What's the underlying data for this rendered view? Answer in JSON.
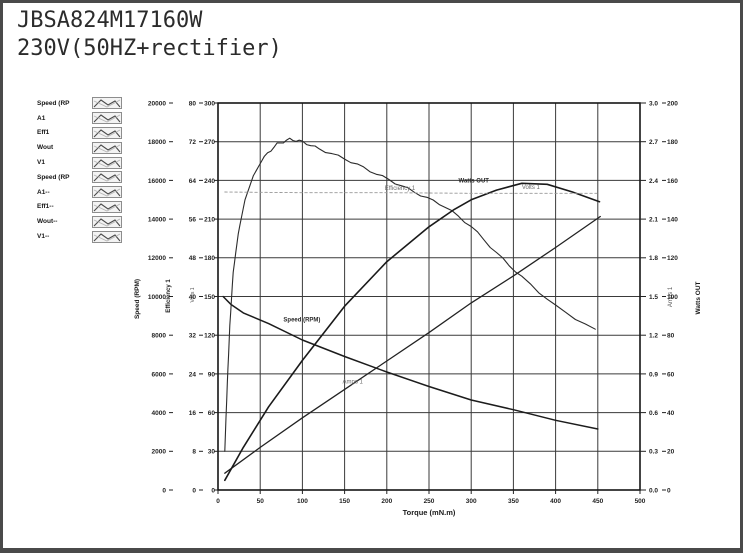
{
  "frame": {
    "title_line1": "JBSA824M17160W",
    "title_line2": "230V(50HZ+rectifier)"
  },
  "legend": {
    "items": [
      {
        "label": "Speed (RP"
      },
      {
        "label": "A1"
      },
      {
        "label": "Eff1"
      },
      {
        "label": "Wout"
      },
      {
        "label": "V1"
      },
      {
        "label": "Speed (RP"
      },
      {
        "label": "A1--"
      },
      {
        "label": "Eff1--"
      },
      {
        "label": "Wout--"
      },
      {
        "label": "V1--"
      }
    ]
  },
  "chart_data": {
    "type": "line",
    "title": "",
    "xlabel": "Torque (mN.m)",
    "xlim": [
      0,
      500
    ],
    "x_ticks": [
      "0",
      "50",
      "100",
      "150",
      "200",
      "250",
      "300",
      "350",
      "400",
      "450",
      "500"
    ],
    "grid": true,
    "legend_position": "left",
    "axes": [
      {
        "id": "speed",
        "title": "Speed (RPM)",
        "side": "left",
        "lim": [
          0,
          20000
        ],
        "ticks": [
          "20000",
          "18000",
          "16000",
          "14000",
          "12000",
          "10000",
          "8000",
          "6000",
          "4000",
          "2000",
          "0"
        ],
        "bold": true
      },
      {
        "id": "efficiency",
        "title": "Efficiency 1",
        "side": "left",
        "lim": [
          0,
          80
        ],
        "ticks": [
          "80",
          "72",
          "64",
          "56",
          "48",
          "40",
          "32",
          "24",
          "16",
          "8",
          "0"
        ],
        "bold": true
      },
      {
        "id": "volts",
        "title": "Volts 1",
        "side": "left",
        "lim": [
          0,
          300
        ],
        "ticks": [
          "300",
          "270",
          "240",
          "210",
          "180",
          "150",
          "120",
          "90",
          "60",
          "30",
          "0"
        ],
        "bold": false
      },
      {
        "id": "amps",
        "title": "Amps 1",
        "side": "right",
        "lim": [
          0,
          3
        ],
        "ticks": [
          "3.0",
          "2.7",
          "2.4",
          "2.1",
          "1.8",
          "1.5",
          "1.2",
          "0.9",
          "0.6",
          "0.3",
          "0.0"
        ],
        "bold": false
      },
      {
        "id": "watts",
        "title": "Watts OUT",
        "side": "right",
        "lim": [
          0,
          200
        ],
        "ticks": [
          "200",
          "180",
          "160",
          "140",
          "120",
          "100",
          "80",
          "60",
          "40",
          "20",
          "0"
        ],
        "bold": true
      }
    ],
    "series": [
      {
        "name": "Speed (RPM)",
        "axis": "speed",
        "noisy": false,
        "dashed": false,
        "points": [
          [
            6,
            10000
          ],
          [
            15,
            9600
          ],
          [
            30,
            9150
          ],
          [
            60,
            8600
          ],
          [
            100,
            7750
          ],
          [
            150,
            6900
          ],
          [
            200,
            6100
          ],
          [
            250,
            5350
          ],
          [
            300,
            4650
          ],
          [
            350,
            4150
          ],
          [
            400,
            3600
          ],
          [
            450,
            3150
          ]
        ]
      },
      {
        "name": "Efficiency 1",
        "axis": "efficiency",
        "noisy": true,
        "dashed": false,
        "points": [
          [
            8,
            8
          ],
          [
            11,
            22
          ],
          [
            14,
            34
          ],
          [
            18,
            45
          ],
          [
            24,
            53
          ],
          [
            32,
            60
          ],
          [
            42,
            65
          ],
          [
            55,
            69
          ],
          [
            70,
            71.5
          ],
          [
            85,
            72.5
          ],
          [
            100,
            72
          ],
          [
            120,
            70.5
          ],
          [
            150,
            68.5
          ],
          [
            180,
            66
          ],
          [
            210,
            63.5
          ],
          [
            240,
            61
          ],
          [
            270,
            58.5
          ],
          [
            300,
            54.5
          ],
          [
            330,
            49
          ],
          [
            360,
            44
          ],
          [
            400,
            38
          ],
          [
            447,
            33
          ]
        ]
      },
      {
        "name": "Amps 1",
        "axis": "amps",
        "noisy": false,
        "dashed": false,
        "points": [
          [
            8,
            0.13
          ],
          [
            50,
            0.33
          ],
          [
            100,
            0.56
          ],
          [
            150,
            0.78
          ],
          [
            200,
            1.0
          ],
          [
            250,
            1.22
          ],
          [
            300,
            1.45
          ],
          [
            350,
            1.66
          ],
          [
            400,
            1.88
          ],
          [
            453,
            2.12
          ]
        ]
      },
      {
        "name": "Watts OUT",
        "axis": "watts",
        "noisy": false,
        "dashed": false,
        "points": [
          [
            8,
            5
          ],
          [
            30,
            22
          ],
          [
            60,
            43
          ],
          [
            100,
            67
          ],
          [
            150,
            95
          ],
          [
            200,
            118
          ],
          [
            250,
            136
          ],
          [
            280,
            145
          ],
          [
            300,
            150
          ],
          [
            330,
            155
          ],
          [
            360,
            158.5
          ],
          [
            390,
            158
          ],
          [
            420,
            154
          ],
          [
            452,
            149
          ]
        ]
      },
      {
        "name": "Volts 1",
        "axis": "volts",
        "noisy": false,
        "dashed": true,
        "points": [
          [
            8,
            231
          ],
          [
            100,
            230.5
          ],
          [
            200,
            230.5
          ],
          [
            300,
            230
          ],
          [
            452,
            230
          ]
        ]
      }
    ],
    "annotations": [
      {
        "text": "Speed (RPM)",
        "fx": 0.155,
        "fy": 0.565,
        "bold": true
      },
      {
        "text": "Amps 1",
        "fx": 0.295,
        "fy": 0.725,
        "bold": false
      },
      {
        "text": "Efficiency 1",
        "fx": 0.395,
        "fy": 0.225,
        "bold": false
      },
      {
        "text": "Watts OUT",
        "fx": 0.57,
        "fy": 0.205,
        "bold": true
      },
      {
        "text": "Volts 1",
        "fx": 0.72,
        "fy": 0.222,
        "bold": false
      }
    ]
  }
}
